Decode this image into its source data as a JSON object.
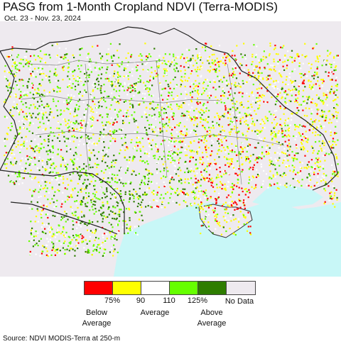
{
  "header": {
    "title": "PASG from 1-Month Cropland NDVI (Terra-MODIS)",
    "subtitle": "Oct. 23 - Nov. 23, 2024"
  },
  "legend": {
    "swatches": [
      {
        "color": "#ff0000"
      },
      {
        "color": "#ffff00"
      },
      {
        "color": "#ffffff"
      },
      {
        "color": "#66ff00"
      },
      {
        "color": "#2e7d00"
      },
      {
        "color": "#eeeaef"
      }
    ],
    "ticks": [
      "75%",
      "90",
      "110",
      "125%"
    ],
    "categories": {
      "below": "Below\nAverage",
      "average": "Average",
      "above": "Above\nAverage",
      "nodata": "No Data"
    }
  },
  "map_colors": {
    "nodata_land": "#eeeaef",
    "sea": "#c8f7f7",
    "border": "#333333",
    "below": "#ff0000",
    "slightly_below": "#ffff00",
    "average": "#ffffff",
    "slightly_above": "#66ff00",
    "above": "#2e7d00"
  },
  "source": "Source: NDVI MODIS-Terra at 250-m"
}
